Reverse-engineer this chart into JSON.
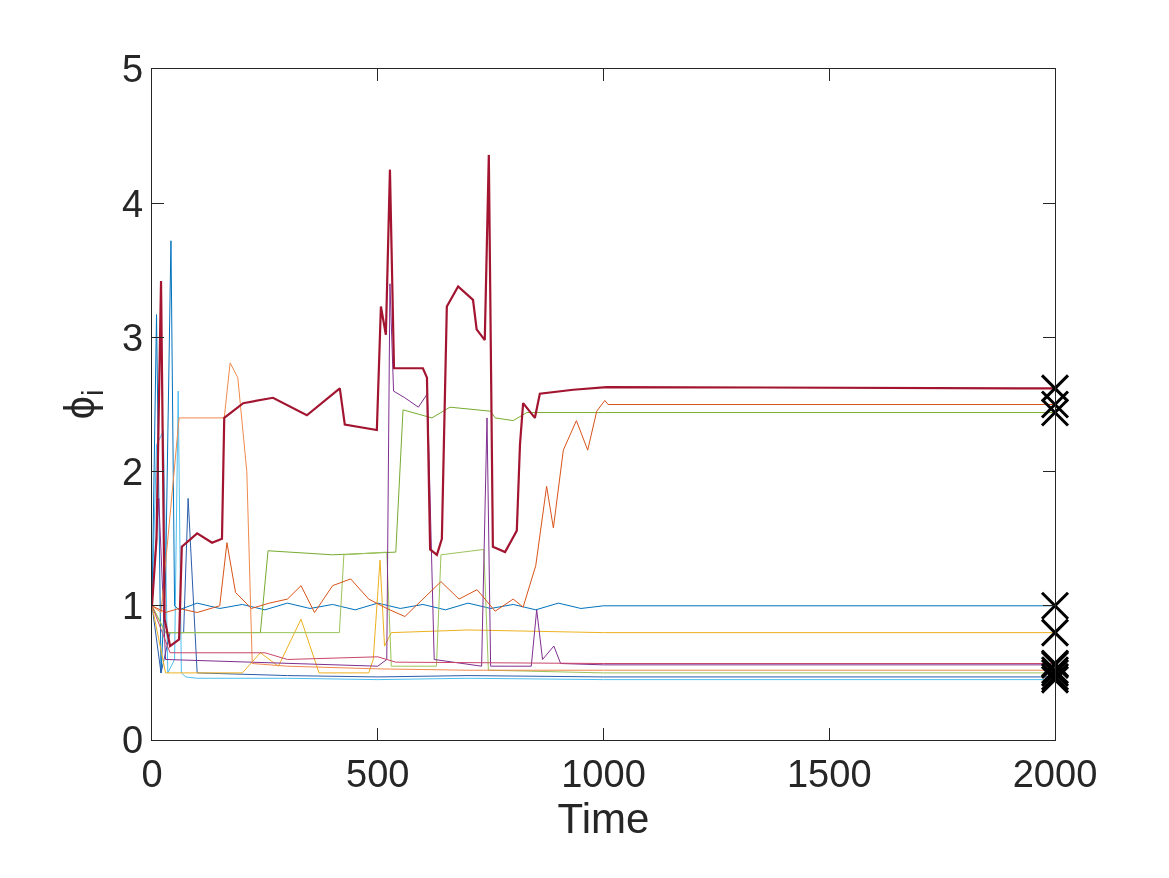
{
  "chart_data": {
    "type": "line",
    "xlabel": "Time",
    "ylabel": "ϕ$_{i}$",
    "xlim": [
      0,
      2000
    ],
    "ylim": [
      0,
      5
    ],
    "xticks": [
      0,
      500,
      1000,
      1500,
      2000
    ],
    "yticks": [
      0,
      1,
      2,
      3,
      4,
      5
    ],
    "marker": "none",
    "line_style": "solid",
    "series": [
      {
        "color": "#4dbeee",
        "x": [
          0,
          10,
          25,
          35,
          50,
          58,
          65,
          75,
          100,
          300,
          500,
          700,
          1000,
          2000
        ],
        "values": [
          1.0,
          2.2,
          2.3,
          0.5,
          0.6,
          2.6,
          0.5,
          0.47,
          0.46,
          0.46,
          0.45,
          0.46,
          0.45,
          0.45
        ]
      },
      {
        "color": "#0072bd",
        "x": [
          0,
          10,
          20,
          30,
          42,
          50,
          60,
          100,
          150,
          200,
          250,
          300,
          350,
          400,
          450,
          500,
          550,
          600,
          650,
          700,
          750,
          800,
          850,
          900,
          950,
          1000,
          2000
        ],
        "values": [
          1.0,
          3.17,
          0.5,
          1.2,
          3.72,
          1.0,
          0.97,
          1.02,
          0.98,
          1.01,
          0.97,
          1.02,
          0.98,
          1.01,
          0.97,
          1.02,
          0.98,
          1.01,
          0.97,
          1.02,
          0.98,
          1.01,
          0.97,
          1.02,
          0.98,
          1.0,
          1.0
        ]
      },
      {
        "color": "#2a5caa",
        "x": [
          0,
          20,
          40,
          70,
          80,
          100,
          300,
          500,
          700,
          1000,
          2000
        ],
        "values": [
          1.0,
          0.5,
          0.8,
          0.8,
          1.8,
          0.5,
          0.48,
          0.47,
          0.48,
          0.47,
          0.47
        ]
      },
      {
        "color": "#edb120",
        "x": [
          0,
          30,
          200,
          240,
          280,
          330,
          350,
          370,
          480,
          490,
          505,
          515,
          530,
          700,
          1000,
          2000
        ],
        "values": [
          1.0,
          0.5,
          0.5,
          0.65,
          0.55,
          0.9,
          0.7,
          0.5,
          0.5,
          0.6,
          1.34,
          0.7,
          0.8,
          0.82,
          0.8,
          0.8
        ]
      },
      {
        "color": "#77ac30",
        "x": [
          0,
          30,
          240,
          257,
          400,
          540,
          556,
          620,
          660,
          750,
          760,
          800,
          830,
          1000,
          2000
        ],
        "values": [
          1.0,
          0.8,
          0.8,
          1.41,
          1.38,
          1.4,
          2.46,
          2.4,
          2.48,
          2.45,
          2.4,
          2.38,
          2.44,
          2.44,
          2.44
        ]
      },
      {
        "color": "#9cc35a",
        "x": [
          0,
          30,
          415,
          425,
          520,
          530,
          630,
          640,
          735,
          745,
          1000,
          2000
        ],
        "values": [
          1.0,
          0.8,
          0.8,
          1.38,
          1.4,
          0.55,
          0.55,
          1.38,
          1.42,
          0.52,
          0.5,
          0.5
        ]
      },
      {
        "color": "#7e2f8e",
        "x": [
          0,
          15,
          30,
          500,
          520,
          527,
          535,
          560,
          590,
          610,
          625,
          730,
          742,
          750,
          840,
          852,
          865,
          890,
          905,
          1000,
          2000
        ],
        "values": [
          1.0,
          1.8,
          0.6,
          0.55,
          0.6,
          3.4,
          2.6,
          2.55,
          2.48,
          2.58,
          0.6,
          0.55,
          2.4,
          0.55,
          0.55,
          0.97,
          0.6,
          0.7,
          0.57,
          0.56,
          0.56
        ]
      },
      {
        "color": "#f08a4b",
        "x": [
          0,
          20,
          60,
          160,
          173,
          190,
          210,
          222,
          300,
          500,
          700,
          1000,
          2000
        ],
        "values": [
          1.0,
          0.95,
          2.4,
          2.4,
          2.81,
          2.7,
          2.0,
          0.57,
          0.55,
          0.53,
          0.52,
          0.52,
          0.52
        ]
      },
      {
        "color": "#d95319",
        "x": [
          0,
          30,
          60,
          100,
          150,
          166,
          185,
          220,
          260,
          300,
          330,
          360,
          400,
          440,
          480,
          520,
          560,
          600,
          640,
          680,
          720,
          760,
          800,
          822,
          850,
          874,
          889,
          911,
          940,
          965,
          985,
          1003,
          1010,
          2000
        ],
        "values": [
          1.0,
          0.95,
          0.98,
          0.95,
          1.0,
          1.47,
          1.1,
          0.98,
          1.02,
          1.05,
          1.15,
          0.95,
          1.15,
          1.2,
          1.05,
          0.98,
          0.92,
          1.05,
          1.18,
          1.05,
          1.12,
          0.96,
          1.05,
          0.99,
          1.3,
          1.89,
          1.58,
          2.16,
          2.38,
          2.16,
          2.45,
          2.53,
          2.5,
          2.5
        ]
      },
      {
        "color": "#c8466a",
        "x": [
          0,
          40,
          250,
          300,
          500,
          540,
          1000,
          2000
        ],
        "values": [
          1.0,
          0.65,
          0.65,
          0.6,
          0.62,
          0.58,
          0.57,
          0.57
        ]
      },
      {
        "color": "#a2142f",
        "x": [
          0,
          10,
          20,
          28,
          40,
          60,
          66,
          100,
          133,
          155,
          160,
          202,
          268,
          343,
          416,
          427,
          498,
          507,
          518,
          527,
          536,
          600,
          609,
          616,
          631,
          642,
          653,
          678,
          711,
          719,
          737,
          746,
          755,
          782,
          808,
          815,
          822,
          848,
          859,
          933,
          1007,
          2000
        ],
        "values": [
          1.0,
          1.5,
          3.42,
          0.9,
          0.7,
          0.75,
          1.44,
          1.54,
          1.47,
          1.5,
          2.4,
          2.51,
          2.55,
          2.42,
          2.62,
          2.35,
          2.31,
          3.23,
          3.02,
          4.25,
          2.77,
          2.77,
          2.7,
          1.42,
          1.38,
          1.5,
          3.23,
          3.38,
          3.28,
          3.06,
          2.98,
          4.36,
          1.44,
          1.4,
          1.56,
          2.2,
          2.51,
          2.4,
          2.58,
          2.61,
          2.63,
          2.62
        ]
      },
      {
        "type": "scatter",
        "marker": "cross",
        "color": "#000000",
        "x": [
          2000,
          2000,
          2000,
          2000,
          2000,
          2000,
          2000,
          2000,
          2000,
          2000,
          2000
        ],
        "values": [
          2.62,
          2.5,
          2.44,
          1.0,
          0.8,
          0.57,
          0.56,
          0.52,
          0.5,
          0.47,
          0.45
        ]
      }
    ]
  }
}
